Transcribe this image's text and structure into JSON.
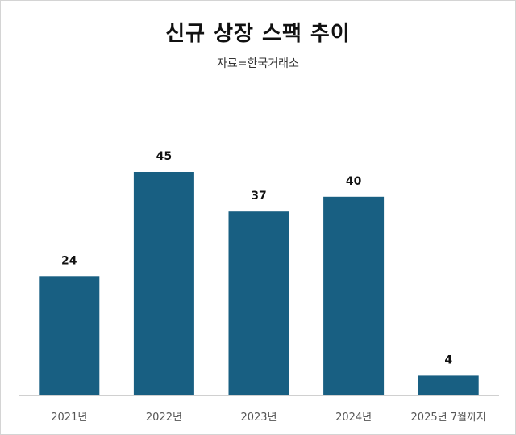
{
  "chart_data": {
    "type": "bar",
    "title": "신규 상장 스팩 추이",
    "subtitle": "자료=한국거래소",
    "categories": [
      "2021년",
      "2022년",
      "2023년",
      "2024년",
      "2025년 7월까지"
    ],
    "values": [
      24,
      45,
      37,
      40,
      4
    ],
    "ylim": [
      0,
      45
    ],
    "grid": false,
    "legend": "none",
    "bar_color": "#185f82",
    "axis_color": "#d0d0d0"
  }
}
